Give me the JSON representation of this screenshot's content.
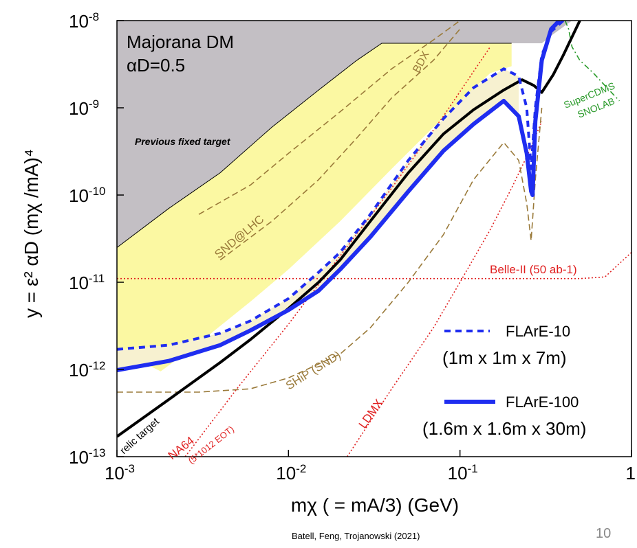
{
  "chart_data": {
    "type": "line",
    "title": "Majorana DM",
    "subtitle": "αD=0.5",
    "xlabel": "mχ ( = mA/3)  (GeV)",
    "ylabel": "y = ε² αD (mχ /mA)⁴",
    "x_scale": "log",
    "y_scale": "log",
    "xlim": [
      0.001,
      1
    ],
    "ylim": [
      1e-13,
      1e-08
    ],
    "x_ticks": [
      "10-3",
      "10-2",
      "10-1",
      "1"
    ],
    "y_ticks": [
      "10-13",
      "10-12",
      "10-11",
      "10-10",
      "10-9",
      "10-8"
    ],
    "grid": false,
    "legend_position": "bottom-right",
    "regions": [
      {
        "name": "Previous fixed target",
        "color": "#c3bfc4",
        "boundary": [
          [
            0.001,
            2.5e-11
          ],
          [
            0.002,
            7e-11
          ],
          [
            0.004,
            1.8e-10
          ],
          [
            0.008,
            6e-10
          ],
          [
            0.015,
            1.6e-09
          ],
          [
            0.025,
            3.5e-09
          ],
          [
            0.035,
            5.5e-09
          ],
          [
            0.1,
            5.5e-09
          ],
          [
            0.2,
            5.5e-09
          ],
          [
            0.3,
            5.5e-09
          ],
          [
            0.35,
            7e-09
          ],
          [
            0.45,
            1e-08
          ]
        ]
      },
      {
        "name": "yellow-region",
        "color": "#fbf8a2",
        "boundary": [
          [
            0.0018,
            9.5e-13
          ],
          [
            0.003,
            2e-12
          ],
          [
            0.006,
            6e-12
          ],
          [
            0.01,
            1.4e-11
          ],
          [
            0.02,
            5e-11
          ],
          [
            0.04,
            2e-10
          ],
          [
            0.07,
            6e-10
          ],
          [
            0.15,
            2.5e-09
          ],
          [
            0.2,
            3e-09
          ]
        ]
      },
      {
        "name": "cream-region",
        "color": "#f7f1d0"
      }
    ],
    "series": [
      {
        "name": "FLArE-10",
        "style": "blue-dashed",
        "x": [
          0.001,
          0.002,
          0.004,
          0.006,
          0.01,
          0.015,
          0.02,
          0.03,
          0.05,
          0.08,
          0.12,
          0.18,
          0.22,
          0.245,
          0.26,
          0.275,
          0.3,
          0.34,
          0.4
        ],
        "y": [
          1.7e-12,
          1.9e-12,
          2.6e-12,
          3.6e-12,
          6.5e-12,
          1.3e-11,
          2.2e-11,
          6e-11,
          2.5e-10,
          7.5e-10,
          1.7e-09,
          2.8e-09,
          2.3e-09,
          1e-09,
          2e-10,
          1e-09,
          4e-09,
          7.5e-09,
          1e-08
        ]
      },
      {
        "name": "FLArE-100",
        "style": "blue-solid",
        "x": [
          0.001,
          0.002,
          0.004,
          0.006,
          0.01,
          0.015,
          0.02,
          0.03,
          0.05,
          0.08,
          0.12,
          0.18,
          0.22,
          0.245,
          0.26,
          0.265,
          0.275,
          0.3,
          0.34,
          0.38
        ],
        "y": [
          9.8e-13,
          1.25e-12,
          1.9e-12,
          2.8e-12,
          4.8e-12,
          8e-12,
          1.4e-11,
          3.3e-11,
          1.1e-10,
          3.2e-10,
          6.5e-10,
          1.2e-09,
          8e-10,
          3e-10,
          1.1e-10,
          1e-10,
          7e-10,
          3.5e-09,
          8e-09,
          1e-08
        ]
      },
      {
        "name": "relic target",
        "style": "black-solid",
        "x": [
          0.001,
          0.002,
          0.004,
          0.006,
          0.01,
          0.015,
          0.02,
          0.03,
          0.05,
          0.08,
          0.12,
          0.18,
          0.23,
          0.27,
          0.3,
          0.35,
          0.4,
          0.5
        ],
        "y": [
          1.7e-13,
          4.5e-13,
          1.2e-12,
          2.2e-12,
          5e-12,
          1e-11,
          1.8e-11,
          5e-11,
          1.8e-10,
          5e-10,
          9.5e-10,
          1.6e-09,
          2.1e-09,
          1.8e-09,
          1.5e-09,
          2.4e-09,
          4e-09,
          1e-08
        ]
      },
      {
        "name": "Belle-II (50 ab-1)",
        "style": "red-dotted",
        "x": [
          0.001,
          0.01,
          0.1,
          0.5,
          0.7,
          1
        ],
        "y": [
          1.1e-11,
          1.1e-11,
          1.1e-11,
          1.1e-11,
          1.15e-11,
          2.2e-11
        ]
      },
      {
        "name": "NA64 (5*1012 EOT)",
        "style": "red-dotted",
        "x": [
          0.0025,
          0.005,
          0.01,
          0.02,
          0.04,
          0.08,
          0.15
        ],
        "y": [
          1e-13,
          6e-13,
          3.3e-12,
          2e-11,
          1.2e-10,
          8e-10,
          5e-09
        ]
      },
      {
        "name": "LDMX",
        "style": "red-dotted",
        "x": [
          0.022,
          0.04,
          0.07,
          0.1,
          0.15,
          0.2,
          0.25,
          0.3
        ],
        "y": [
          1e-13,
          6e-13,
          3e-12,
          1e-11,
          4e-11,
          1.2e-10,
          3e-10,
          7e-10
        ]
      },
      {
        "name": "SHiP (SND)",
        "style": "brown-dashed",
        "x": [
          0.001,
          0.003,
          0.006,
          0.01,
          0.02,
          0.03,
          0.05,
          0.08,
          0.12,
          0.18,
          0.22,
          0.245,
          0.26,
          0.275,
          0.3
        ],
        "y": [
          5.5e-13,
          5.5e-13,
          6e-13,
          8e-13,
          1.5e-12,
          3e-12,
          1e-11,
          3.5e-11,
          1.5e-10,
          4e-10,
          2.5e-10,
          8e-11,
          3e-11,
          1.5e-10,
          1e-09
        ]
      },
      {
        "name": "SND@LHC",
        "style": "brown-dashed",
        "x": [
          0.003,
          0.006,
          0.01,
          0.02,
          0.04,
          0.07,
          0.1
        ],
        "y": [
          6e-11,
          1.3e-10,
          3e-10,
          9e-10,
          2.8e-09,
          6e-09,
          1e-08
        ]
      },
      {
        "name": "BDX",
        "style": "brown-dashed",
        "x": [
          0.004,
          0.008,
          0.015,
          0.025,
          0.04,
          0.07,
          0.1
        ],
        "y": [
          1.8e-11,
          5e-11,
          1.5e-10,
          4.5e-10,
          1.3e-09,
          3.5e-09,
          8e-09
        ]
      },
      {
        "name": "SuperCDMS SNOLAB",
        "style": "green-dashdot",
        "x": [
          0.41,
          0.43,
          0.45,
          0.5,
          0.6,
          0.7,
          0.85
        ],
        "y": [
          1e-08,
          8e-09,
          5e-09,
          3.5e-09,
          2.5e-09,
          1.8e-09,
          1.2e-09
        ]
      }
    ],
    "annotations": [
      {
        "text": "Majorana DM",
        "color": "#000000"
      },
      {
        "text": "αD=0.5",
        "color": "#000000"
      },
      {
        "text": "Previous fixed target",
        "color": "#000000"
      },
      {
        "text": "BDX",
        "color": "#9a7a3a"
      },
      {
        "text": "SND@LHC",
        "color": "#9a7a3a"
      },
      {
        "text": "SHiP (SND)",
        "color": "#9a7a3a"
      },
      {
        "text": "Belle-II (50 ab-1)",
        "color": "#e02020"
      },
      {
        "text": "NA64",
        "color": "#e02020"
      },
      {
        "text": "(5*1012 EOT)",
        "color": "#e02020"
      },
      {
        "text": "LDMX",
        "color": "#e02020"
      },
      {
        "text": "relic target",
        "color": "#000000"
      },
      {
        "text": "SuperCDMS",
        "color": "#2a9a2a"
      },
      {
        "text": "SNOLAB",
        "color": "#2a9a2a"
      }
    ],
    "legend": [
      {
        "label": "FLArE-10",
        "sub": "(1m x 1m x 7m)",
        "style": "blue-dashed"
      },
      {
        "label": "FLArE-100",
        "sub": "(1.6m x 1.6m x 30m)",
        "style": "blue-solid"
      }
    ]
  },
  "footer": {
    "citation": "Batell, Feng, Trojanowski (2021)",
    "page_number": "10"
  },
  "colors": {
    "gray_region": "#c3bfc4",
    "yellow_region": "#fbf8a2",
    "cream_region": "#f7f1d0",
    "flare_blue": "#1f2df0",
    "brown_dashed": "#9a7a3a",
    "red_dotted": "#e02020",
    "green": "#2a9a2a",
    "black": "#000000"
  }
}
